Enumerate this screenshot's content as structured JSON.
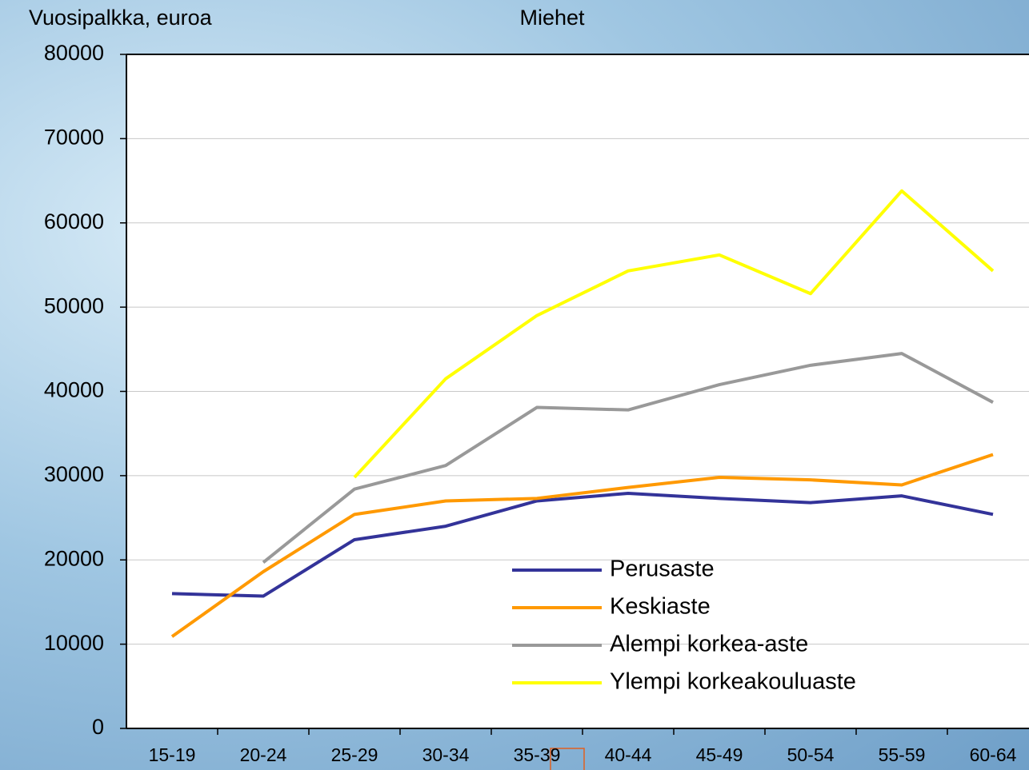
{
  "chart_data": {
    "type": "line",
    "y_axis_label": "Vuosipalkka, euroa",
    "title": "Miehet",
    "categories": [
      "15-19",
      "20-24",
      "25-29",
      "30-34",
      "35-39",
      "40-44",
      "45-49",
      "50-54",
      "55-59",
      "60-64"
    ],
    "series": [
      {
        "name": "Perusaste",
        "color": "#333399",
        "values": [
          16000,
          15700,
          22400,
          24000,
          27000,
          27900,
          27300,
          26800,
          27600,
          25400
        ]
      },
      {
        "name": "Keskiaste",
        "color": "#ff9900",
        "values": [
          10900,
          18600,
          25400,
          27000,
          27300,
          28600,
          29800,
          29500,
          28900,
          32500
        ]
      },
      {
        "name": "Alempi korkea-aste",
        "color": "#999999",
        "values": [
          null,
          19700,
          28400,
          31200,
          38100,
          37800,
          40800,
          43100,
          44500,
          38700
        ]
      },
      {
        "name": "Ylempi korkeakouluaste",
        "color": "#ffff00",
        "values": [
          null,
          null,
          29800,
          41500,
          49000,
          54300,
          56200,
          51600,
          63800,
          54300
        ]
      }
    ],
    "ylim": [
      0,
      80000
    ],
    "yticks": [
      0,
      10000,
      20000,
      30000,
      40000,
      50000,
      60000,
      70000,
      80000
    ],
    "grid": true,
    "legend": "bottom-center"
  }
}
